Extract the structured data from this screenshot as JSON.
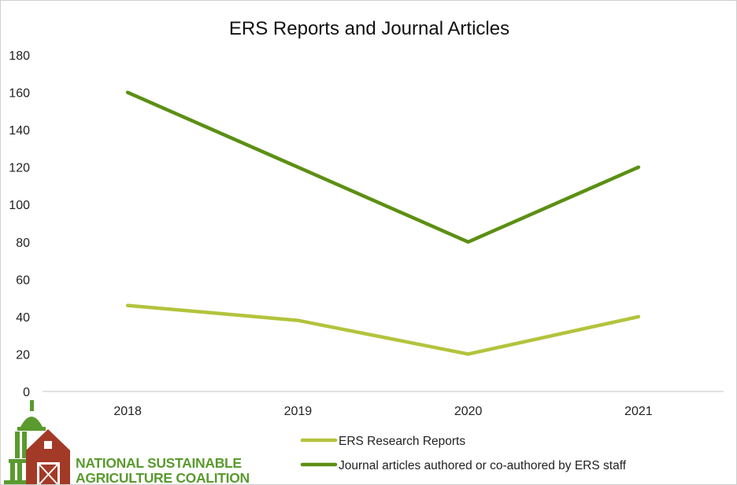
{
  "chart_data": {
    "type": "line",
    "title": "ERS Reports and Journal Articles",
    "categories": [
      "2018",
      "2019",
      "2020",
      "2021"
    ],
    "series": [
      {
        "name": "ERS Research Reports",
        "values": [
          46,
          38,
          20,
          40
        ],
        "color": "#b3c33c"
      },
      {
        "name": "Journal articles authored or co-authored by ERS staff",
        "values": [
          160,
          120,
          80,
          120
        ],
        "color": "#5c8f14"
      }
    ],
    "ylim": [
      0,
      180
    ],
    "yticks": [
      "0",
      "20",
      "40",
      "60",
      "80",
      "100",
      "120",
      "140",
      "160",
      "180"
    ],
    "grid": false,
    "legend_position": "bottom"
  },
  "logo": {
    "line1": "NATIONAL SUSTAINABLE",
    "line2": "AGRICULTURE COALITION",
    "dome_color": "#5a9a2e",
    "barn_color": "#a33a27"
  }
}
